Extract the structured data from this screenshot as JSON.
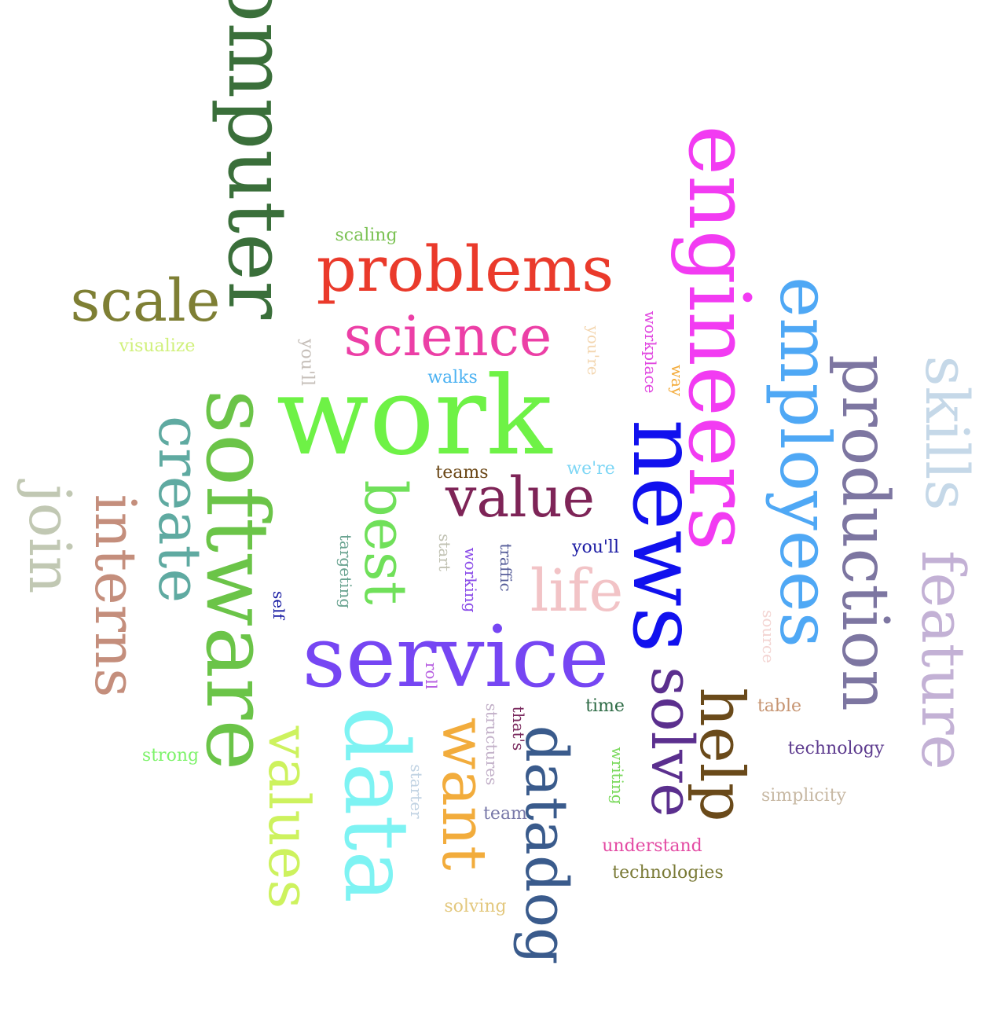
{
  "words": [
    {
      "text": "computer",
      "color": "#3a6f3a"
    },
    {
      "text": "engineers",
      "color": "#f23bf2"
    },
    {
      "text": "employees",
      "color": "#4fa8f5"
    },
    {
      "text": "production",
      "color": "#7d76a1"
    },
    {
      "text": "skills",
      "color": "#c5d8e8"
    },
    {
      "text": "feature",
      "color": "#c3b1d5"
    },
    {
      "text": "problems",
      "color": "#ea3a2b"
    },
    {
      "text": "scale",
      "color": "#7e7f34"
    },
    {
      "text": "scaling",
      "color": "#7cc255"
    },
    {
      "text": "science",
      "color": "#ec3fa6"
    },
    {
      "text": "visualize",
      "color": "#d0f07a"
    },
    {
      "text": "you'll",
      "color": "#c6bfb9"
    },
    {
      "text": "walks",
      "color": "#4cb2f2"
    },
    {
      "text": "you're",
      "color": "#f3d6b0"
    },
    {
      "text": "workplace",
      "color": "#e148e0"
    },
    {
      "text": "way",
      "color": "#f3ab3b"
    },
    {
      "text": "software",
      "color": "#6bc448"
    },
    {
      "text": "work",
      "color": "#6ef246"
    },
    {
      "text": "news",
      "color": "#1111ee"
    },
    {
      "text": "create",
      "color": "#5faaa1"
    },
    {
      "text": "join",
      "color": "#c1c8b3"
    },
    {
      "text": "interns",
      "color": "#c48e7c"
    },
    {
      "text": "best",
      "color": "#70e05a"
    },
    {
      "text": "teams",
      "color": "#6a4615"
    },
    {
      "text": "we're",
      "color": "#7dd6f5"
    },
    {
      "text": "value",
      "color": "#7e2457"
    },
    {
      "text": "targeting",
      "color": "#69a390"
    },
    {
      "text": "start",
      "color": "#c1c2b3"
    },
    {
      "text": "working",
      "color": "#8a4ce8"
    },
    {
      "text": "traffic",
      "color": "#565d99"
    },
    {
      "text": "you'll",
      "color": "#1a1aa3"
    },
    {
      "text": "life",
      "color": "#f2c3c6"
    },
    {
      "text": "self",
      "color": "#1418a1"
    },
    {
      "text": "source",
      "color": "#f3d4d2"
    },
    {
      "text": "service",
      "color": "#7646f3"
    },
    {
      "text": "solve",
      "color": "#5b2f8e"
    },
    {
      "text": "help",
      "color": "#6a4a1a"
    },
    {
      "text": "roll",
      "color": "#b65de0"
    },
    {
      "text": "data",
      "color": "#7ef3f3"
    },
    {
      "text": "want",
      "color": "#f2ac3c"
    },
    {
      "text": "values",
      "color": "#cdf25e"
    },
    {
      "text": "datadog",
      "color": "#3a5b8c"
    },
    {
      "text": "structures",
      "color": "#c2b0c8"
    },
    {
      "text": "that's",
      "color": "#7a2a5e"
    },
    {
      "text": "time",
      "color": "#2c6a44"
    },
    {
      "text": "table",
      "color": "#c69471"
    },
    {
      "text": "strong",
      "color": "#7ef36b"
    },
    {
      "text": "writing",
      "color": "#7ad95c"
    },
    {
      "text": "technology",
      "color": "#5e3c8f"
    },
    {
      "text": "starter",
      "color": "#c1d3e3"
    },
    {
      "text": "team",
      "color": "#7878a8"
    },
    {
      "text": "simplicity",
      "color": "#c7b8a3"
    },
    {
      "text": "understand",
      "color": "#e34aa3"
    },
    {
      "text": "technologies",
      "color": "#7a7a36"
    },
    {
      "text": "solving",
      "color": "#e3c87e"
    }
  ]
}
